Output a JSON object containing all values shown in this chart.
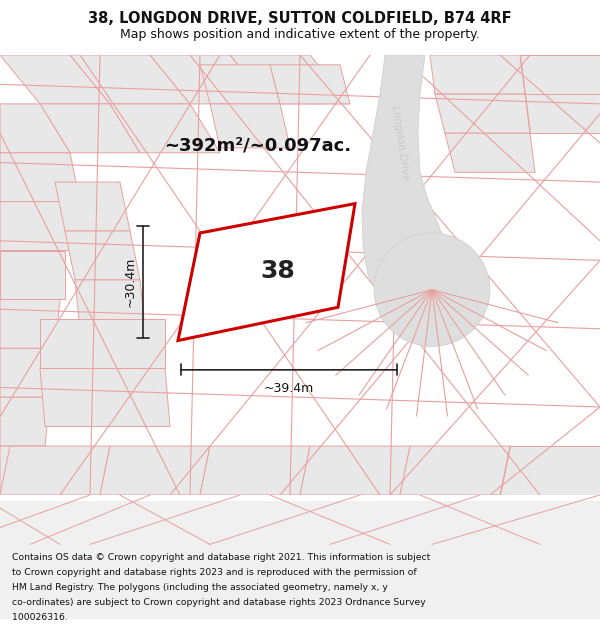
{
  "title_line1": "38, LONGDON DRIVE, SUTTON COLDFIELD, B74 4RF",
  "title_line2": "Map shows position and indicative extent of the property.",
  "area_text": "~392m²/~0.097ac.",
  "label_38": "38",
  "dim_vertical": "~30.4m",
  "dim_horizontal": "~39.4m",
  "road_label": "Longdon Drive",
  "footer_lines": [
    "Contains OS data © Crown copyright and database right 2021. This information is subject",
    "to Crown copyright and database rights 2023 and is reproduced with the permission of",
    "HM Land Registry. The polygons (including the associated geometry, namely x, y",
    "co-ordinates) are subject to Crown copyright and database rights 2023 Ordnance Survey",
    "100026316."
  ],
  "bg_color": "#f0f0f0",
  "plot_color": "#ffffff",
  "plot_edge_color": "#e8a0a0",
  "road_color": "#e0e0e0",
  "highlight_color": "#cc0000",
  "dim_line_color": "#222222",
  "road_text_color": "#cccccc",
  "fig_width": 6.0,
  "fig_height": 6.25,
  "dpi": 100
}
